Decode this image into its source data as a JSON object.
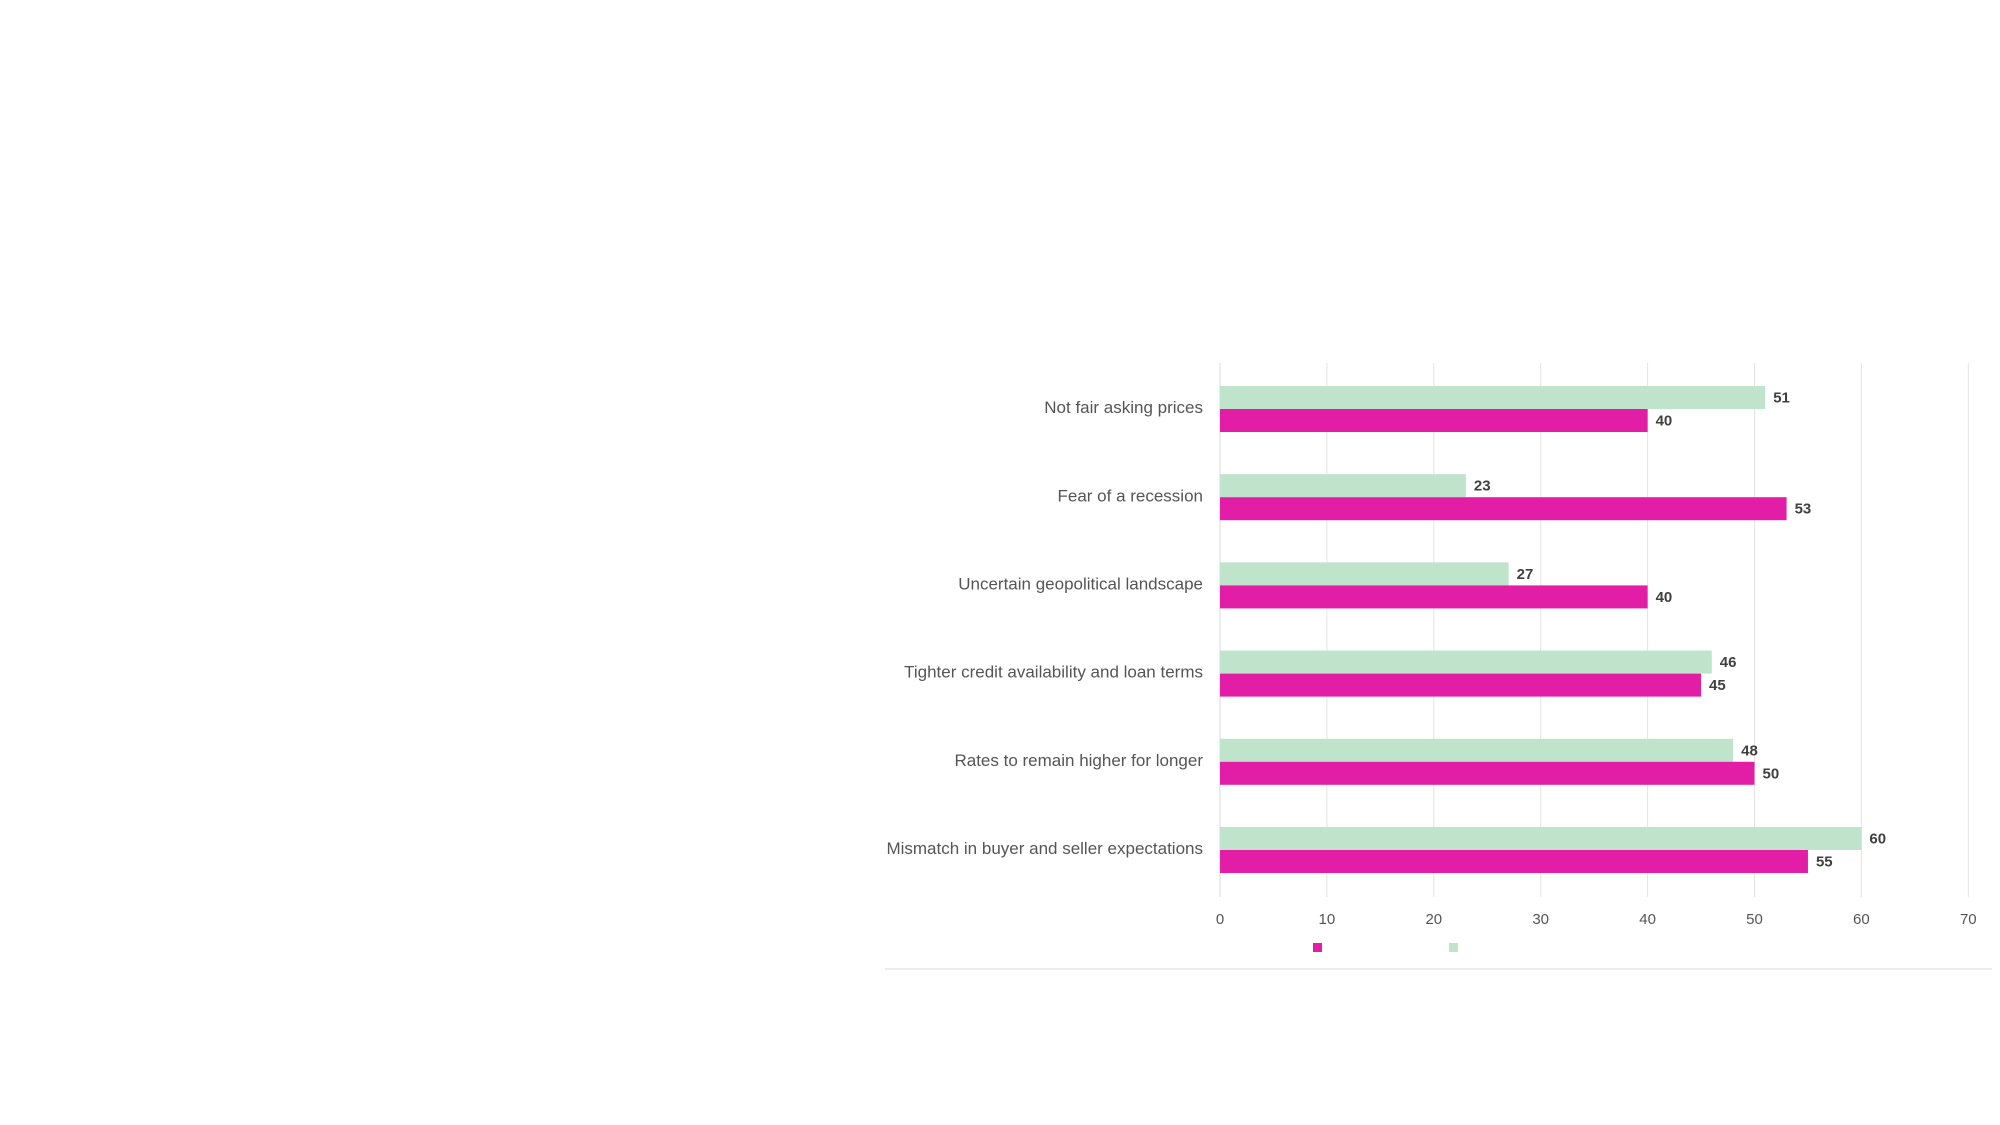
{
  "chart_data": {
    "type": "bar",
    "orientation": "horizontal",
    "title": "",
    "xlabel": "",
    "ylabel": "",
    "categories": [
      "Not fair asking prices",
      "Fear of a recession",
      "Uncertain geopolitical landscape",
      "Tighter credit availability and loan terms",
      "Rates to remain higher for longer",
      "Mismatch in buyer and seller expectations"
    ],
    "series": [
      {
        "values": [
          51,
          23,
          27,
          46,
          48,
          60
        ],
        "color": "#bfe3cb"
      },
      {
        "values": [
          40,
          53,
          40,
          45,
          50,
          55
        ],
        "color": "#e11ea5"
      }
    ],
    "xlim": [
      0,
      70
    ],
    "xticks": [
      0,
      10,
      20,
      30,
      40,
      50,
      60,
      70
    ],
    "grid": true,
    "legend_position": "bottom",
    "data_labels": true
  }
}
